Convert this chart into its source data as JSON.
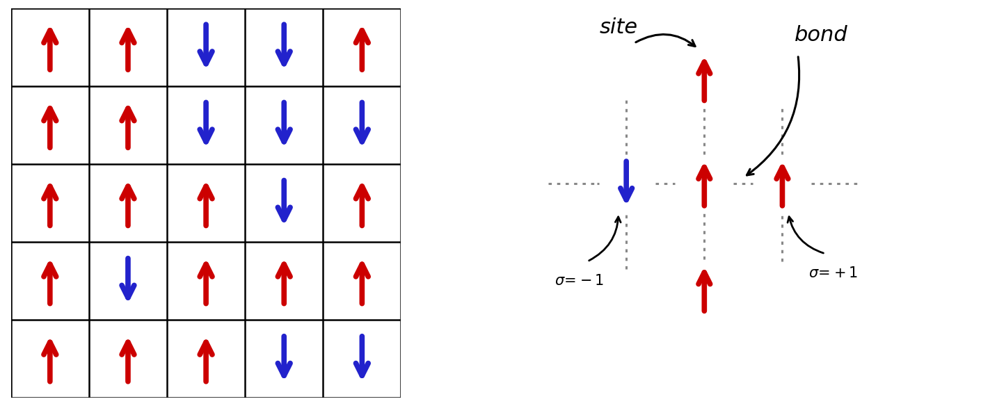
{
  "grid_spins": [
    [
      1,
      1,
      -1,
      -1,
      1
    ],
    [
      1,
      1,
      -1,
      -1,
      -1
    ],
    [
      1,
      1,
      1,
      -1,
      1
    ],
    [
      1,
      -1,
      1,
      1,
      1
    ],
    [
      1,
      1,
      1,
      -1,
      -1
    ]
  ],
  "up_color": "#cc0000",
  "down_color": "#2222cc",
  "grid_color": "#000000",
  "background_color": "#ffffff",
  "dot_color": "#888888"
}
